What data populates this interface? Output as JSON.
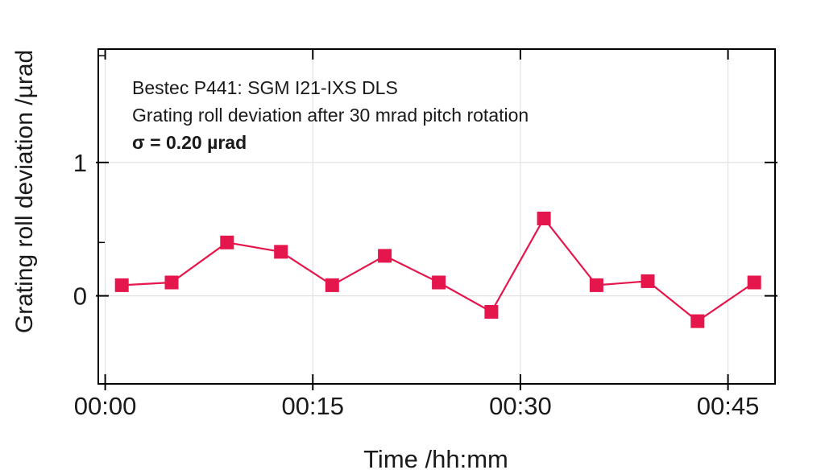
{
  "page": {
    "background": "#ffffff"
  },
  "colors": {
    "series": "#e4164b",
    "grid": "#e2e2e2",
    "axis": "#000000",
    "text": "#1a1a1a"
  },
  "chart_data": {
    "type": "line",
    "annotation": {
      "line1": "Bestec P441: SGM I21-IXS DLS",
      "line2": "Grating roll deviation after 30 mrad pitch rotation",
      "line3": "σ = 0.20 µrad"
    },
    "sigma_urad": 0.2,
    "xlabel": "Time /hh:mm",
    "ylabel": "Grating roll deviation /µrad",
    "x_unit": "minutes",
    "xlim": [
      -0.5,
      48.4
    ],
    "ylim": [
      -0.66,
      1.85
    ],
    "grid": true,
    "legend": "none",
    "x_ticks": [
      {
        "label": "00:00",
        "minutes": 0
      },
      {
        "label": "00:15",
        "minutes": 15
      },
      {
        "label": "00:30",
        "minutes": 30
      },
      {
        "label": "00:45",
        "minutes": 45
      }
    ],
    "y_ticks": [
      {
        "label": "1",
        "value": 1
      },
      {
        "label": "0",
        "value": 0
      }
    ],
    "y_minor_ticks": [
      1.8,
      0.4
    ],
    "series": [
      {
        "name": "grating roll deviation",
        "marker": "square",
        "color": "#e4164b",
        "points": [
          {
            "time": "00:01",
            "minutes": 1.2,
            "value": 0.08
          },
          {
            "time": "00:05",
            "minutes": 4.8,
            "value": 0.1
          },
          {
            "time": "00:09",
            "minutes": 8.8,
            "value": 0.4
          },
          {
            "time": "00:13",
            "minutes": 12.7,
            "value": 0.33
          },
          {
            "time": "00:16",
            "minutes": 16.4,
            "value": 0.08
          },
          {
            "time": "00:20",
            "minutes": 20.2,
            "value": 0.3
          },
          {
            "time": "00:24",
            "minutes": 24.1,
            "value": 0.1
          },
          {
            "time": "00:28",
            "minutes": 27.9,
            "value": -0.12
          },
          {
            "time": "00:32",
            "minutes": 31.7,
            "value": 0.58
          },
          {
            "time": "00:36",
            "minutes": 35.5,
            "value": 0.08
          },
          {
            "time": "00:39",
            "minutes": 39.2,
            "value": 0.11
          },
          {
            "time": "00:43",
            "minutes": 42.8,
            "value": -0.19
          },
          {
            "time": "00:47",
            "minutes": 46.9,
            "value": 0.1
          }
        ]
      }
    ]
  }
}
